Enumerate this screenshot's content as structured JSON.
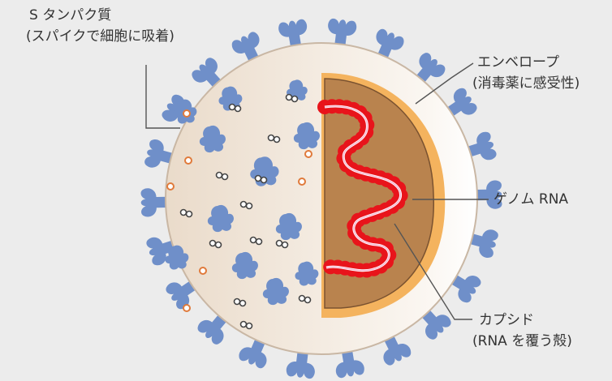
{
  "labels": {
    "spike_title": "S タンパク質",
    "spike_sub": "(スパイクで細胞に吸着)",
    "envelope_title": "エンベロープ",
    "envelope_sub": "(消毒薬に感受性)",
    "genome": "ゲノム RNA",
    "capsid_title": "カプシド",
    "capsid_sub": "(RNA を覆う殻)"
  },
  "colors": {
    "background": "#ececec",
    "virion_interior": "#efe3d6",
    "spike": "#6f8fc9",
    "envelope": "#f4b35e",
    "capsid": "#b9834e",
    "rna_beads": "#e8141b",
    "leader_line": "#555555"
  }
}
